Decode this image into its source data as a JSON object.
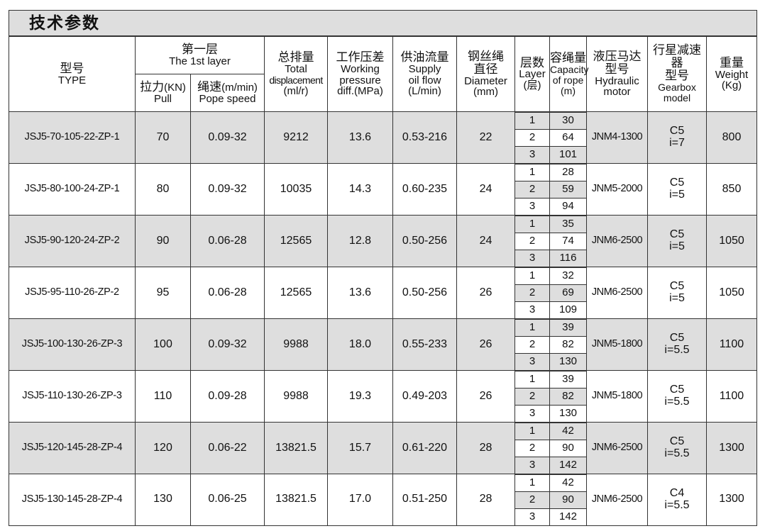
{
  "title": "技术参数",
  "headers": {
    "type_cn": "型号",
    "type_en": "TYPE",
    "first_layer_cn": "第一层",
    "first_layer_en": "The 1st layer",
    "pull_cn": "拉力",
    "pull_unit": "(KN)",
    "pull_en": "Pull",
    "speed_cn": "绳速",
    "speed_unit": "(m/min)",
    "speed_en": "Pope speed",
    "disp_cn": "总排量",
    "disp_en1": "Total",
    "disp_en2": "displacement",
    "disp_unit": "(ml/r)",
    "press_cn": "工作压差",
    "press_en1": "Working",
    "press_en2": "pressure",
    "press_en3": "diff.(MPa)",
    "flow_cn": "供油流量",
    "flow_en1": "Supply",
    "flow_en2": "oil flow",
    "flow_unit": "(L/min)",
    "dia_cn1": "钢丝绳",
    "dia_cn2": "直径",
    "dia_en": "Diameter",
    "dia_unit": "(mm)",
    "layer_cn": "层数",
    "layer_en": "Layer",
    "layer_unit": "(层)",
    "cap_cn": "容绳量",
    "cap_en1": "Capacity",
    "cap_en2": "of rope",
    "cap_unit": "(m)",
    "motor_cn1": "液压马达",
    "motor_cn2": "型号",
    "motor_en1": "Hydraulic",
    "motor_en2": "motor",
    "gear_cn1": "行星减速器",
    "gear_cn2": "型号",
    "gear_en1": "Gearbox",
    "gear_en2": "model",
    "weight_cn": "重量",
    "weight_en": "Weight",
    "weight_unit": "(Kg)"
  },
  "rows": [
    {
      "type": "JSJ5-70-105-22-ZP-1",
      "pull": "70",
      "speed": "0.09-32",
      "disp": "9212",
      "press": "13.6",
      "flow": "0.53-216",
      "dia": "22",
      "layers": [
        "1",
        "2",
        "3"
      ],
      "capacity": [
        "30",
        "64",
        "101"
      ],
      "motor": "JNM4-1300",
      "gear": "C5",
      "ratio": "i=7",
      "weight": "800"
    },
    {
      "type": "JSJ5-80-100-24-ZP-1",
      "pull": "80",
      "speed": "0.09-32",
      "disp": "10035",
      "press": "14.3",
      "flow": "0.60-235",
      "dia": "24",
      "layers": [
        "1",
        "2",
        "3"
      ],
      "capacity": [
        "28",
        "59",
        "94"
      ],
      "motor": "JNM5-2000",
      "gear": "C5",
      "ratio": "i=5",
      "weight": "850"
    },
    {
      "type": "JSJ5-90-120-24-ZP-2",
      "pull": "90",
      "speed": "0.06-28",
      "disp": "12565",
      "press": "12.8",
      "flow": "0.50-256",
      "dia": "24",
      "layers": [
        "1",
        "2",
        "3"
      ],
      "capacity": [
        "35",
        "74",
        "116"
      ],
      "motor": "JNM6-2500",
      "gear": "C5",
      "ratio": "i=5",
      "weight": "1050"
    },
    {
      "type": "JSJ5-95-110-26-ZP-2",
      "pull": "95",
      "speed": "0.06-28",
      "disp": "12565",
      "press": "13.6",
      "flow": "0.50-256",
      "dia": "26",
      "layers": [
        "1",
        "2",
        "3"
      ],
      "capacity": [
        "32",
        "69",
        "109"
      ],
      "motor": "JNM6-2500",
      "gear": "C5",
      "ratio": "i=5",
      "weight": "1050"
    },
    {
      "type": "JSJ5-100-130-26-ZP-3",
      "pull": "100",
      "speed": "0.09-32",
      "disp": "9988",
      "press": "18.0",
      "flow": "0.55-233",
      "dia": "26",
      "layers": [
        "1",
        "2",
        "3"
      ],
      "capacity": [
        "39",
        "82",
        "130"
      ],
      "motor": "JNM5-1800",
      "gear": "C5",
      "ratio": "i=5.5",
      "weight": "1100"
    },
    {
      "type": "JSJ5-110-130-26-ZP-3",
      "pull": "110",
      "speed": "0.09-28",
      "disp": "9988",
      "press": "19.3",
      "flow": "0.49-203",
      "dia": "26",
      "layers": [
        "1",
        "2",
        "3"
      ],
      "capacity": [
        "39",
        "82",
        "130"
      ],
      "motor": "JNM5-1800",
      "gear": "C5",
      "ratio": "i=5.5",
      "weight": "1100"
    },
    {
      "type": "JSJ5-120-145-28-ZP-4",
      "pull": "120",
      "speed": "0.06-22",
      "disp": "13821.5",
      "press": "15.7",
      "flow": "0.61-220",
      "dia": "28",
      "layers": [
        "1",
        "2",
        "3"
      ],
      "capacity": [
        "42",
        "90",
        "142"
      ],
      "motor": "JNM6-2500",
      "gear": "C5",
      "ratio": "i=5.5",
      "weight": "1300"
    },
    {
      "type": "JSJ5-130-145-28-ZP-4",
      "pull": "130",
      "speed": "0.06-25",
      "disp": "13821.5",
      "press": "17.0",
      "flow": "0.51-250",
      "dia": "28",
      "layers": [
        "1",
        "2",
        "3"
      ],
      "capacity": [
        "42",
        "90",
        "142"
      ],
      "motor": "JNM6-2500",
      "gear": "C4",
      "ratio": "i=5.5",
      "weight": "1300"
    }
  ],
  "colors": {
    "shade": "#dedede",
    "border": "#333333"
  }
}
